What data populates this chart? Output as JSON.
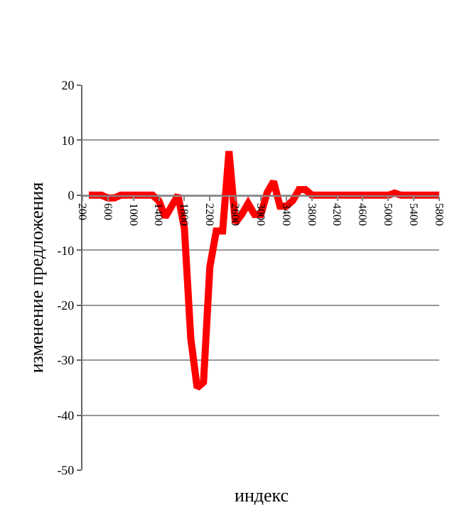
{
  "chart_data": {
    "type": "line",
    "xlabel": "индекс",
    "ylabel": "изменение предложения",
    "x": [
      300,
      500,
      600,
      700,
      800,
      1300,
      1400,
      1500,
      1600,
      1700,
      1800,
      1900,
      2000,
      2100,
      2200,
      2300,
      2400,
      2500,
      2600,
      2700,
      2800,
      2900,
      3000,
      3100,
      3200,
      3300,
      3400,
      3500,
      3600,
      3700,
      3800,
      5000,
      5100,
      5200,
      5800
    ],
    "series": [
      {
        "color": "#ff0000",
        "values": [
          0,
          0,
          -0.5,
          -0.5,
          0,
          0,
          -1,
          -4,
          -2,
          0,
          -6,
          -26,
          -35,
          -34,
          -13,
          -6.5,
          -6.5,
          8,
          -5,
          -3.5,
          -1.5,
          -3.5,
          -3.5,
          0.5,
          2.5,
          -2,
          -2,
          -1,
          1,
          1,
          0,
          0,
          0.4,
          0,
          0
        ]
      }
    ],
    "xlim": [
      200,
      5800
    ],
    "xticks": [
      200,
      600,
      1000,
      1400,
      1800,
      2200,
      2600,
      3000,
      3400,
      3800,
      4200,
      4600,
      5000,
      5400,
      5800
    ],
    "ylim": [
      -50,
      20
    ],
    "yticks": [
      -50,
      -40,
      -30,
      -20,
      -10,
      0,
      10,
      20
    ],
    "grid": "y",
    "marker": "none",
    "line_style": "solid"
  }
}
